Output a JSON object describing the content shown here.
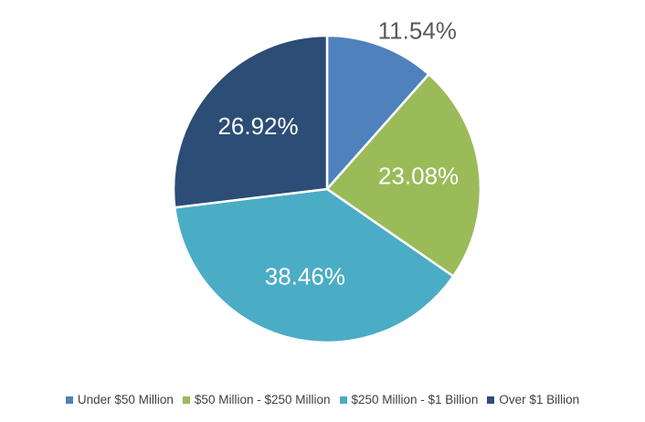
{
  "chart_data": {
    "type": "pie",
    "title": "",
    "categories": [
      "Under $50 Million",
      "$50 Million - $250 Million",
      "$250 Million - $1 Billion",
      "Over $1 Billion"
    ],
    "values": [
      11.54,
      23.08,
      38.46,
      26.92
    ],
    "data_labels": [
      "11.54%",
      "23.08%",
      "38.46%",
      "26.92%"
    ],
    "colors": [
      "#4f81bd",
      "#9bbb59",
      "#4bacc6",
      "#2c4d75"
    ],
    "legend_placement": "bottom"
  }
}
